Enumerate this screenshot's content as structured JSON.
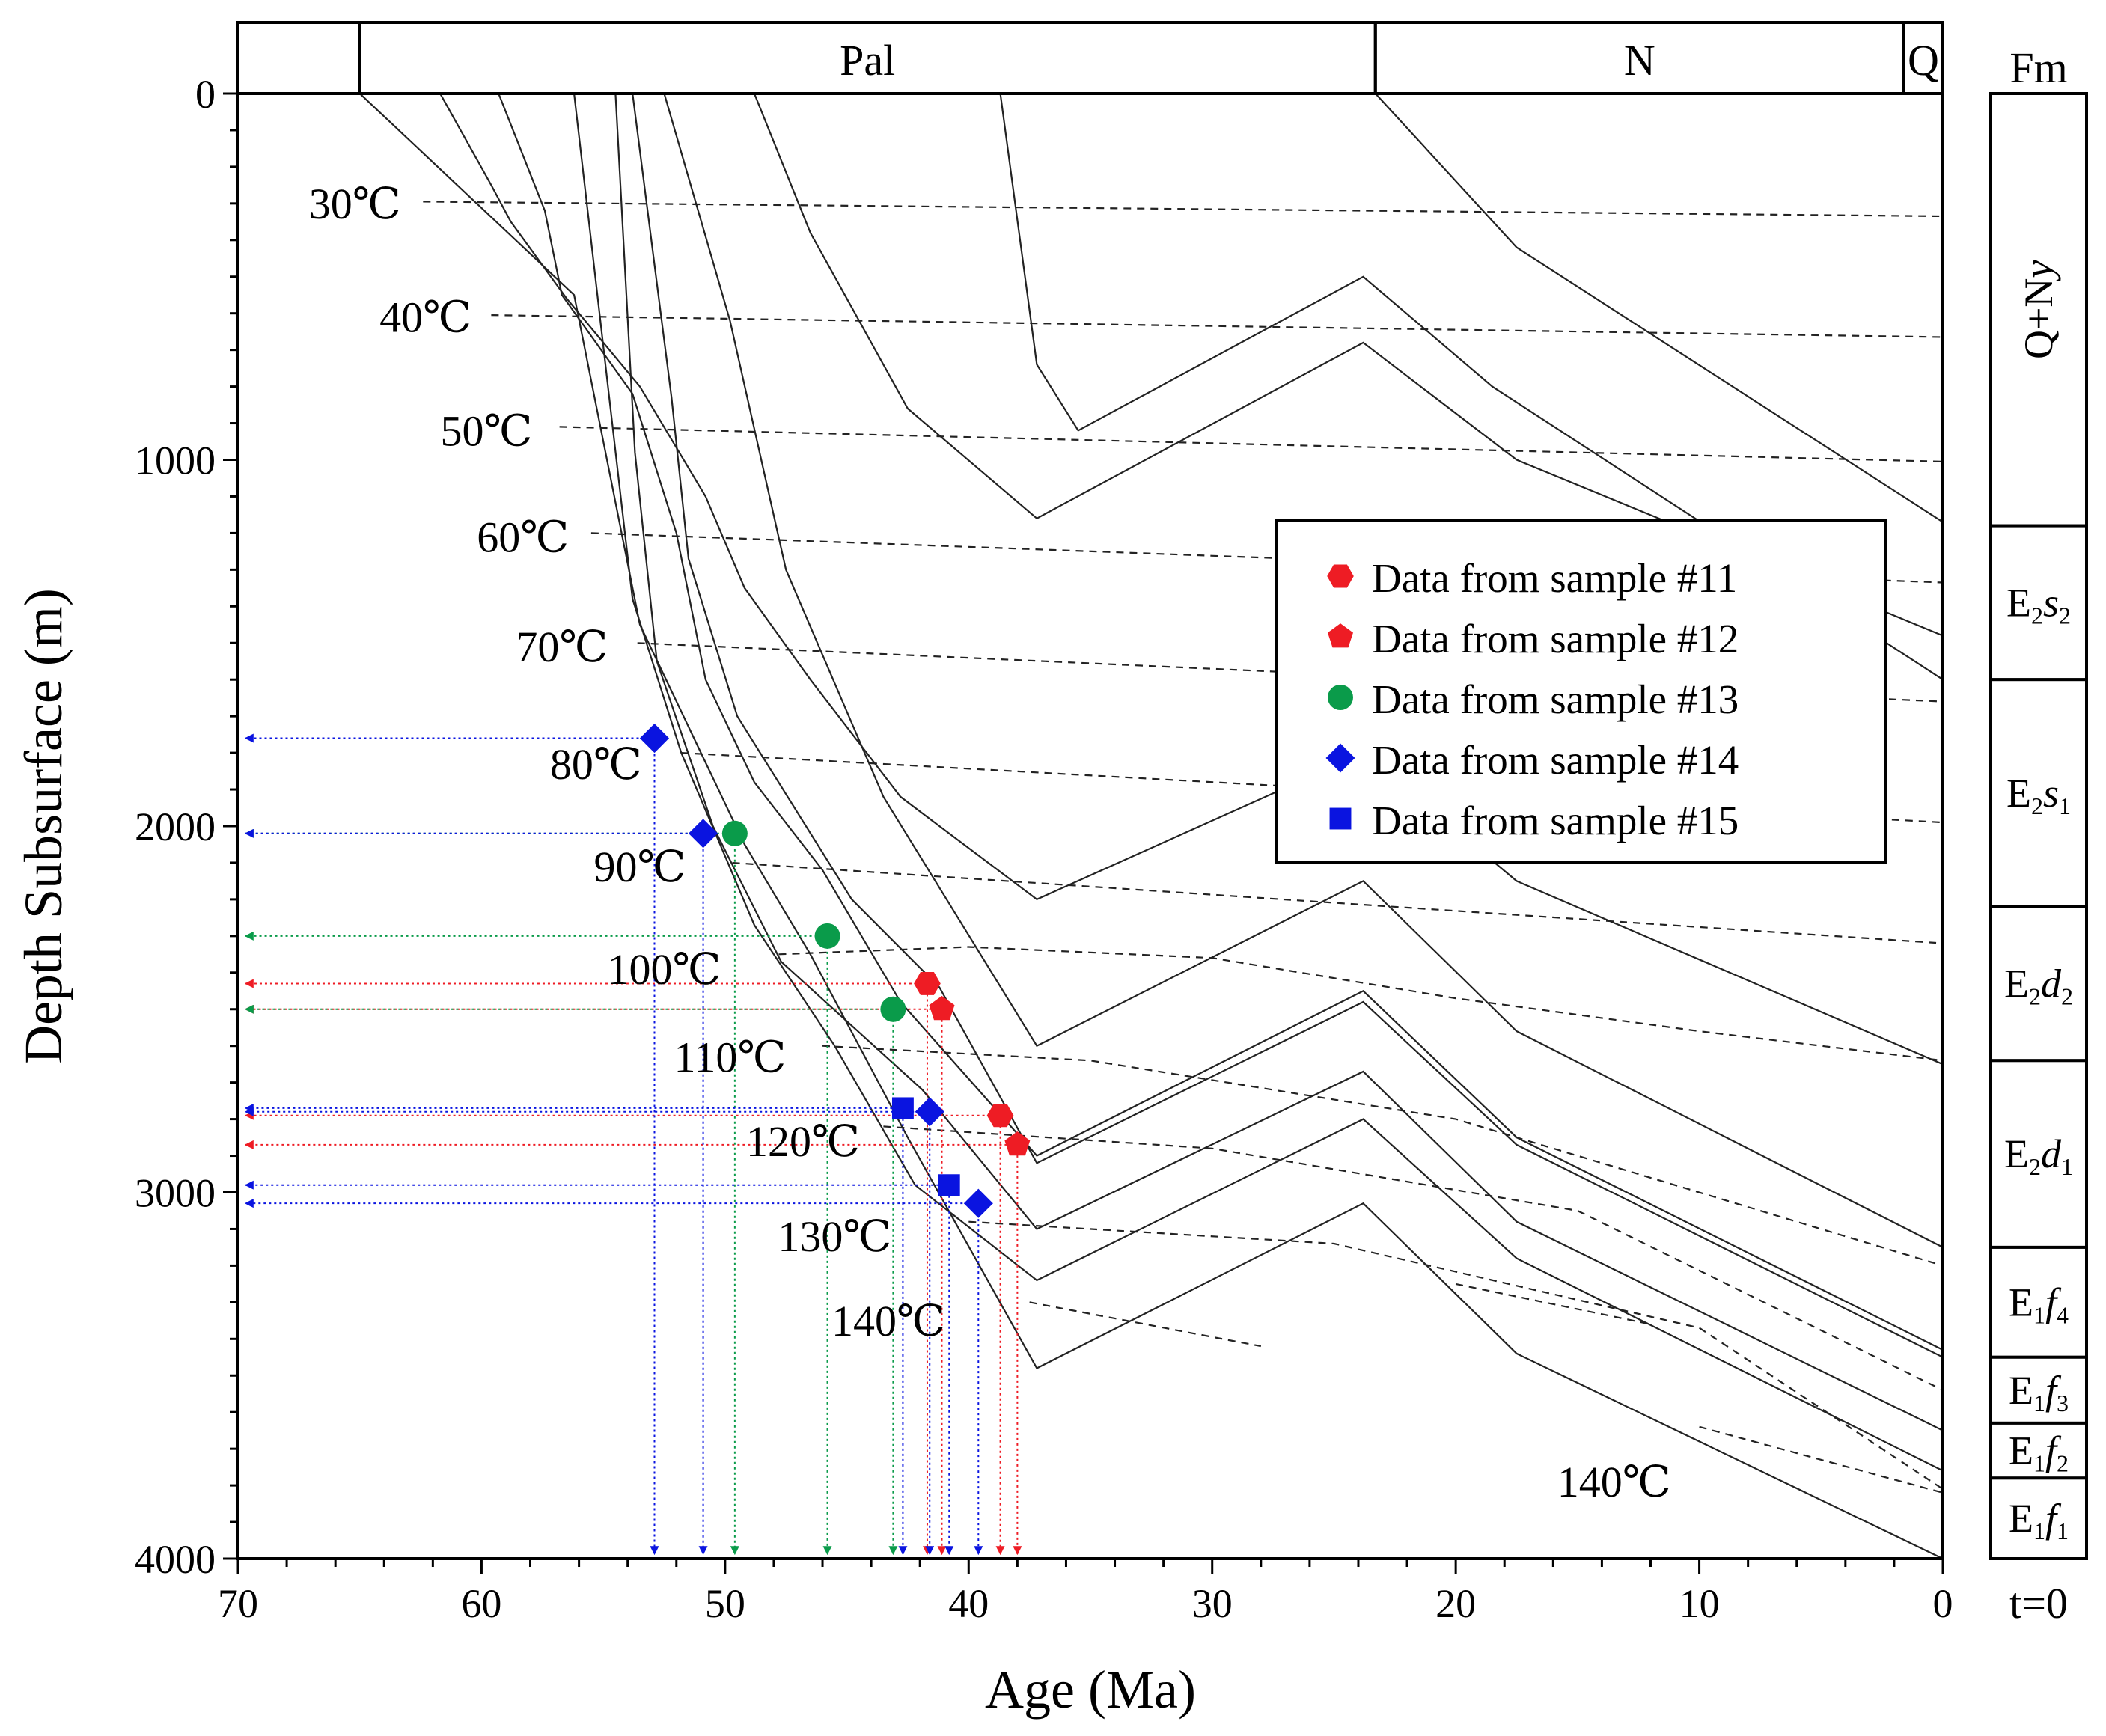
{
  "chart_data": {
    "type": "line",
    "title": "",
    "xlabel": "Age (Ma)",
    "ylabel": "Depth Subsurface (m)",
    "xlim": [
      70,
      0
    ],
    "ylim": [
      0,
      4000
    ],
    "x_ticks": [
      70,
      60,
      50,
      40,
      30,
      20,
      10,
      0
    ],
    "x_tick_labels": [
      "70",
      "60",
      "50",
      "40",
      "30",
      "20",
      "10",
      "0"
    ],
    "y_ticks": [
      0,
      1000,
      2000,
      3000,
      4000
    ],
    "y_tick_labels": [
      "0",
      "1000",
      "2000",
      "3000",
      "4000"
    ],
    "periods": [
      {
        "label": "",
        "from": 70,
        "to": 65
      },
      {
        "label": "Pal",
        "from": 65,
        "to": 23.3
      },
      {
        "label": "N",
        "from": 23.3,
        "to": 1.6
      },
      {
        "label": "Q",
        "from": 1.6,
        "to": 0
      }
    ],
    "burial_curves": [
      {
        "name": "burial-1",
        "points": [
          [
            65,
            0
          ],
          [
            56.2,
            550
          ],
          [
            53.5,
            1450
          ],
          [
            49.2,
            2050
          ],
          [
            46.5,
            2350
          ],
          [
            42.5,
            2850
          ],
          [
            37.2,
            3480
          ],
          [
            23.8,
            3030
          ],
          [
            17.5,
            3440
          ],
          [
            0,
            4000
          ]
        ]
      },
      {
        "name": "burial-2",
        "points": [
          [
            56.2,
            0
          ],
          [
            53.8,
            1380
          ],
          [
            51.8,
            1800
          ],
          [
            48.8,
            2270
          ],
          [
            45.5,
            2600
          ],
          [
            42.2,
            2980
          ],
          [
            37.2,
            3240
          ],
          [
            23.8,
            2800
          ],
          [
            17.5,
            3180
          ],
          [
            0,
            3760
          ]
        ]
      },
      {
        "name": "burial-3",
        "points": [
          [
            54.5,
            0
          ],
          [
            53.7,
            980
          ],
          [
            52.8,
            1550
          ],
          [
            50.5,
            2000
          ],
          [
            47.7,
            2370
          ],
          [
            41.9,
            2720
          ],
          [
            37.2,
            3100
          ],
          [
            23.8,
            2670
          ],
          [
            17.5,
            3080
          ],
          [
            0,
            3650
          ]
        ]
      },
      {
        "name": "burial-4",
        "points": [
          [
            53.8,
            0
          ],
          [
            52.2,
            830
          ],
          [
            51.5,
            1270
          ],
          [
            49.5,
            1700
          ],
          [
            44.8,
            2200
          ],
          [
            41.2,
            2440
          ],
          [
            37.2,
            2920
          ],
          [
            23.8,
            2480
          ],
          [
            17.5,
            2870
          ],
          [
            0,
            3450
          ]
        ]
      },
      {
        "name": "burial-5",
        "points": [
          [
            52.5,
            0
          ],
          [
            49.8,
            620
          ],
          [
            47.5,
            1300
          ],
          [
            43.5,
            1920
          ],
          [
            37.2,
            2600
          ],
          [
            23.8,
            2150
          ],
          [
            17.5,
            2560
          ],
          [
            0,
            3150
          ]
        ]
      },
      {
        "name": "burial-6",
        "points": [
          [
            59.3,
            0
          ],
          [
            57.4,
            320
          ],
          [
            56.7,
            550
          ],
          [
            53.8,
            820
          ],
          [
            52.0,
            1200
          ],
          [
            50.8,
            1600
          ],
          [
            48.8,
            1880
          ],
          [
            46.0,
            2120
          ],
          [
            42.8,
            2480
          ],
          [
            37.2,
            2900
          ],
          [
            23.8,
            2450
          ],
          [
            17.5,
            2850
          ],
          [
            0,
            3430
          ]
        ]
      },
      {
        "name": "burial-7",
        "points": [
          [
            61.7,
            0
          ],
          [
            59.6,
            250
          ],
          [
            58.8,
            350
          ],
          [
            56.5,
            560
          ],
          [
            53.5,
            800
          ],
          [
            50.8,
            1100
          ],
          [
            49.2,
            1350
          ],
          [
            46.5,
            1600
          ],
          [
            42.8,
            1920
          ],
          [
            37.2,
            2200
          ],
          [
            23.8,
            1800
          ],
          [
            17.5,
            2150
          ],
          [
            0,
            2650
          ]
        ]
      },
      {
        "name": "burial-8",
        "points": [
          [
            48.8,
            0
          ],
          [
            46.5,
            380
          ],
          [
            42.5,
            860
          ],
          [
            37.2,
            1160
          ],
          [
            23.8,
            680
          ],
          [
            17.5,
            1000
          ],
          [
            0,
            1480
          ]
        ]
      },
      {
        "name": "burial-9",
        "points": [
          [
            38.7,
            0
          ],
          [
            37.2,
            740
          ],
          [
            35.5,
            920
          ],
          [
            23.8,
            500
          ],
          [
            18.5,
            800
          ],
          [
            0,
            1600
          ]
        ]
      },
      {
        "name": "burial-10",
        "points": [
          [
            23.3,
            0
          ],
          [
            17.5,
            420
          ],
          [
            0,
            1170
          ]
        ]
      }
    ],
    "isotherms": [
      {
        "label": "30℃",
        "points": [
          [
            62.4,
            295
          ],
          [
            0,
            335
          ]
        ]
      },
      {
        "label": "40℃",
        "points": [
          [
            59.6,
            605
          ],
          [
            0,
            665
          ]
        ]
      },
      {
        "label": "50℃",
        "points": [
          [
            56.8,
            910
          ],
          [
            0,
            1005
          ]
        ]
      },
      {
        "label": "60℃",
        "points": [
          [
            55.5,
            1200
          ],
          [
            0,
            1335
          ]
        ]
      },
      {
        "label": "70℃",
        "points": [
          [
            53.6,
            1500
          ],
          [
            0,
            1660
          ]
        ]
      },
      {
        "label": "80℃",
        "points": [
          [
            51.8,
            1800
          ],
          [
            0,
            1990
          ]
        ]
      },
      {
        "label": "90℃",
        "points": [
          [
            49.7,
            2100
          ],
          [
            0,
            2320
          ]
        ]
      },
      {
        "label": "100℃",
        "points": [
          [
            47.8,
            2350
          ],
          [
            40,
            2330
          ],
          [
            30,
            2360
          ],
          [
            20,
            2470
          ],
          [
            10,
            2560
          ],
          [
            0,
            2640
          ]
        ]
      },
      {
        "label": "110℃",
        "points": [
          [
            46,
            2600
          ],
          [
            35,
            2640
          ],
          [
            20,
            2800
          ],
          [
            0,
            3200
          ]
        ]
      },
      {
        "label": "120℃",
        "points": [
          [
            43.5,
            2820
          ],
          [
            30,
            2880
          ],
          [
            15,
            3050
          ],
          [
            0,
            3540
          ]
        ]
      },
      {
        "label": "130℃",
        "points": [
          [
            40,
            3080
          ],
          [
            25,
            3140
          ],
          [
            10,
            3370
          ],
          [
            0,
            3810
          ]
        ]
      },
      {
        "label": "140℃",
        "points": [
          [
            37.5,
            3300
          ],
          [
            28,
            3420
          ]
        ]
      },
      {
        "label": "140℃",
        "points": [
          [
            20,
            3250
          ],
          [
            12,
            3360
          ]
        ]
      },
      {
        "label": "140℃",
        "points": [
          [
            10,
            3640
          ],
          [
            0,
            3820
          ]
        ]
      }
    ],
    "isotherm_labels": [
      {
        "text": "30℃",
        "x": 65.2,
        "y": 300
      },
      {
        "text": "40℃",
        "x": 62.3,
        "y": 610
      },
      {
        "text": "50℃",
        "x": 59.8,
        "y": 920
      },
      {
        "text": "60℃",
        "x": 58.3,
        "y": 1210
      },
      {
        "text": "70℃",
        "x": 56.7,
        "y": 1510
      },
      {
        "text": "80℃",
        "x": 55.3,
        "y": 1830
      },
      {
        "text": "90℃",
        "x": 53.5,
        "y": 2110
      },
      {
        "text": "100℃",
        "x": 52.5,
        "y": 2390
      },
      {
        "text": "110℃",
        "x": 49.8,
        "y": 2630
      },
      {
        "text": "120℃",
        "x": 46.8,
        "y": 2860
      },
      {
        "text": "130℃",
        "x": 45.5,
        "y": 3120
      },
      {
        "text": "140℃",
        "x": 43.3,
        "y": 3350
      },
      {
        "text": "140℃",
        "x": 13.5,
        "y": 3790
      }
    ],
    "series": [
      {
        "name": "Data from sample #11",
        "marker": "hexagon",
        "color": "#ee1c24",
        "points": [
          [
            41.7,
            2430
          ],
          [
            38.7,
            2790
          ]
        ]
      },
      {
        "name": "Data from sample #12",
        "marker": "pentagon",
        "color": "#ee1c24",
        "points": [
          [
            41.1,
            2500
          ],
          [
            38.0,
            2870
          ]
        ]
      },
      {
        "name": "Data from sample #13",
        "marker": "circle",
        "color": "#0a9b4a",
        "points": [
          [
            49.6,
            2020
          ],
          [
            45.8,
            2300
          ],
          [
            43.1,
            2500
          ]
        ]
      },
      {
        "name": "Data from sample #14",
        "marker": "diamond",
        "color": "#0a14e0",
        "points": [
          [
            52.9,
            1760
          ],
          [
            50.9,
            2020
          ],
          [
            41.6,
            2780
          ],
          [
            39.6,
            3030
          ]
        ]
      },
      {
        "name": "Data from sample #15",
        "marker": "square",
        "color": "#0a14e0",
        "points": [
          [
            42.7,
            2770
          ],
          [
            40.8,
            2980
          ]
        ]
      }
    ],
    "legend": {
      "position": "center-right"
    },
    "formations": {
      "header": "Fm",
      "footer": "t=0",
      "items": [
        {
          "base": "Q+N",
          "italic": "y",
          "sub": "",
          "top_m": 0,
          "bottom_m": 1180
        },
        {
          "base": "E",
          "base_sub": "2",
          "italic": "s",
          "sub": "2",
          "top_m": 1180,
          "bottom_m": 1600
        },
        {
          "base": "E",
          "base_sub": "2",
          "italic": "s",
          "sub": "1",
          "top_m": 1600,
          "bottom_m": 2220
        },
        {
          "base": "E",
          "base_sub": "2",
          "italic": "d",
          "sub": "2",
          "top_m": 2220,
          "bottom_m": 2640
        },
        {
          "base": "E",
          "base_sub": "2",
          "italic": "d",
          "sub": "1",
          "top_m": 2640,
          "bottom_m": 3150
        },
        {
          "base": "E",
          "base_sub": "1",
          "italic": "f",
          "sub": "4",
          "top_m": 3150,
          "bottom_m": 3450
        },
        {
          "base": "E",
          "base_sub": "1",
          "italic": "f",
          "sub": "3",
          "top_m": 3450,
          "bottom_m": 3630
        },
        {
          "base": "E",
          "base_sub": "1",
          "italic": "f",
          "sub": "2",
          "top_m": 3630,
          "bottom_m": 3780
        },
        {
          "base": "E",
          "base_sub": "1",
          "italic": "f",
          "sub": "1",
          "top_m": 3780,
          "bottom_m": 4000
        }
      ]
    }
  }
}
